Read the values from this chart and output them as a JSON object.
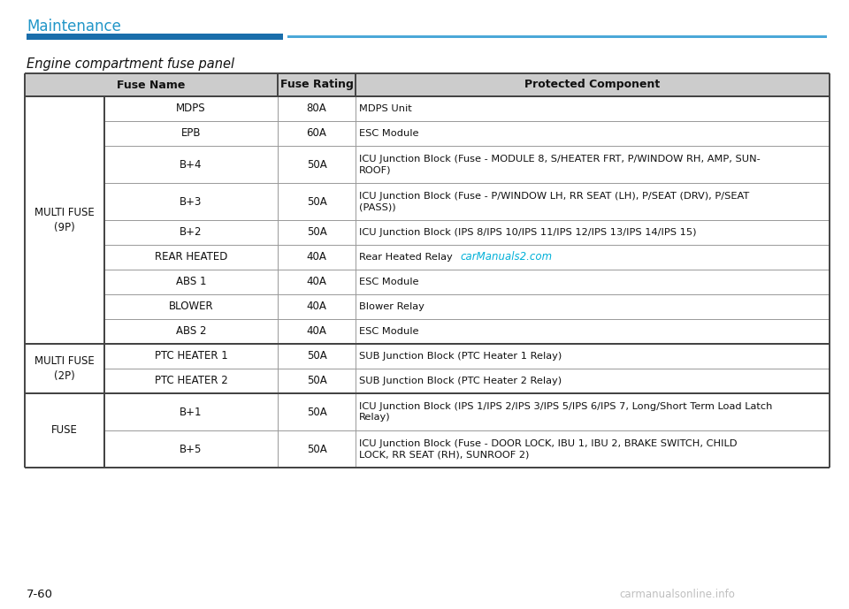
{
  "page_title": "Maintenance",
  "section_title": "Engine compartment fuse panel",
  "page_number": "7-60",
  "watermark_bottom": "carmanualsonline.info",
  "watermark_mid": "carManuals2.com",
  "col_headers": [
    "Fuse Name",
    "Fuse Rating",
    "Protected Component"
  ],
  "groups": [
    {
      "label": "MULTI FUSE\n(9P)",
      "rows": [
        {
          "name": "MDPS",
          "rating": "80A",
          "protected": "MDPS Unit"
        },
        {
          "name": "EPB",
          "rating": "60A",
          "protected": "ESC Module"
        },
        {
          "name": "B+4",
          "rating": "50A",
          "protected": "ICU Junction Block (Fuse - MODULE 8, S/HEATER FRT, P/WINDOW RH, AMP, SUN-\nROOF)"
        },
        {
          "name": "B+3",
          "rating": "50A",
          "protected": "ICU Junction Block (Fuse - P/WINDOW LH, RR SEAT (LH), P/SEAT (DRV), P/SEAT\n(PASS))"
        },
        {
          "name": "B+2",
          "rating": "50A",
          "protected": "ICU Junction Block (IPS 8/IPS 10/IPS 11/IPS 12/IPS 13/IPS 14/IPS 15)"
        },
        {
          "name": "REAR HEATED",
          "rating": "40A",
          "protected": "Rear Heated Relay",
          "watermark": true
        },
        {
          "name": "ABS 1",
          "rating": "40A",
          "protected": "ESC Module"
        },
        {
          "name": "BLOWER",
          "rating": "40A",
          "protected": "Blower Relay"
        },
        {
          "name": "ABS 2",
          "rating": "40A",
          "protected": "ESC Module"
        }
      ]
    },
    {
      "label": "MULTI FUSE\n(2P)",
      "rows": [
        {
          "name": "PTC HEATER 1",
          "rating": "50A",
          "protected": "SUB Junction Block (PTC Heater 1 Relay)"
        },
        {
          "name": "PTC HEATER 2",
          "rating": "50A",
          "protected": "SUB Junction Block (PTC Heater 2 Relay)"
        }
      ]
    },
    {
      "label": "FUSE",
      "rows": [
        {
          "name": "B+1",
          "rating": "50A",
          "protected": "ICU Junction Block (IPS 1/IPS 2/IPS 3/IPS 5/IPS 6/IPS 7, Long/Short Term Load Latch\nRelay)"
        },
        {
          "name": "B+5",
          "rating": "50A",
          "protected": "ICU Junction Block (Fuse - DOOR LOCK, IBU 1, IBU 2, BRAKE SWITCH, CHILD\nLOCK, RR SEAT (RH), SUNROOF 2)"
        }
      ]
    }
  ],
  "bg_color": "#ffffff",
  "header_bg": "#cccccc",
  "title_color": "#2196c8",
  "line_color_thick": "#444444",
  "line_color_thin": "#999999",
  "text_color": "#111111",
  "blue_bar_left_color": "#1a6eab",
  "blue_bar_right_color": "#4ba8d8",
  "watermark_color": "#00b0d8"
}
